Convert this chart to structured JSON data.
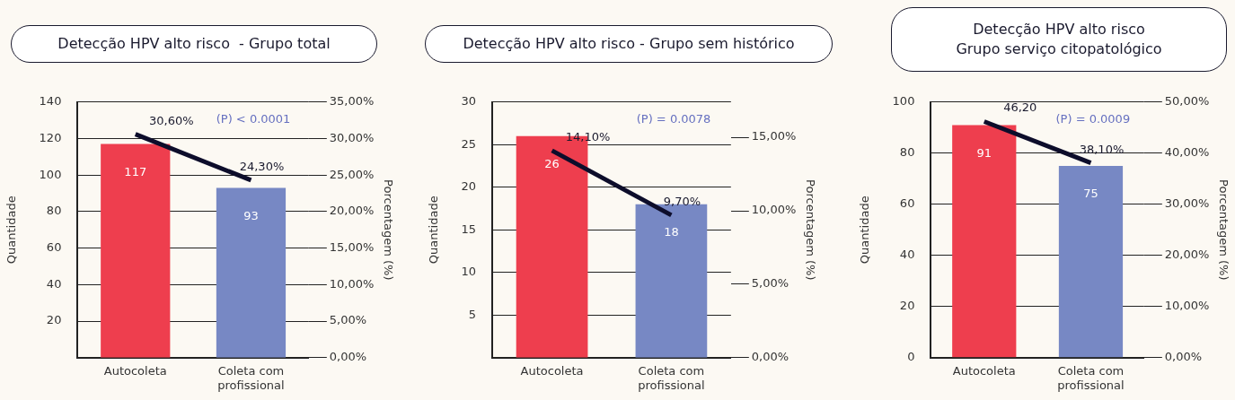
{
  "chart_data": [
    {
      "type": "bar",
      "title": "Detecção HPV alto risco  - Grupo total",
      "categories": [
        "Autocoleta",
        "Coleta com profissional"
      ],
      "ylabel": "Quantidade",
      "y2label": "Porcentagem (%)",
      "series": [
        {
          "colors": [
            "#ee3e4e",
            "#7788c4"
          ],
          "values": [
            117,
            93
          ],
          "value_labels": [
            "117",
            "93"
          ]
        },
        {
          "type": "line",
          "axis": "y2",
          "color": "#0d0d2b",
          "values": [
            30.6,
            24.3
          ],
          "value_labels": [
            "30,60%",
            "24,30%"
          ]
        }
      ],
      "ylim": [
        0,
        140
      ],
      "yticks": [
        20,
        40,
        60,
        80,
        100,
        120,
        140
      ],
      "y2lim": [
        0,
        35
      ],
      "y2ticks": [
        {
          "value": 0,
          "label": "0,00%"
        },
        {
          "value": 5,
          "label": "5,00%"
        },
        {
          "value": 10,
          "label": "10,00%"
        },
        {
          "value": 15,
          "label": "15,00%"
        },
        {
          "value": 20,
          "label": "20,00%"
        },
        {
          "value": 25,
          "label": "25,00%"
        },
        {
          "value": 30,
          "label": "30,00%"
        },
        {
          "value": 35,
          "label": "35,00%"
        }
      ],
      "grid": "y",
      "legend": false,
      "marker": "none",
      "annotations": [
        "(P) < 0.0001"
      ]
    },
    {
      "type": "bar",
      "title": "Detecção HPV alto risco - Grupo sem histórico",
      "categories": [
        "Autocoleta",
        "Coleta com profissional"
      ],
      "ylabel": "Quantidade",
      "y2label": "Porcentagem (%)",
      "series": [
        {
          "colors": [
            "#ee3e4e",
            "#7788c4"
          ],
          "values": [
            26,
            18
          ],
          "value_labels": [
            "26",
            "18"
          ]
        },
        {
          "type": "line",
          "axis": "y2",
          "color": "#0d0d2b",
          "values": [
            14.1,
            9.7
          ],
          "value_labels": [
            "14,10%",
            "9,70%"
          ]
        }
      ],
      "ylim": [
        0,
        30
      ],
      "yticks": [
        5,
        10,
        15,
        20,
        25,
        30
      ],
      "y2lim": [
        0,
        17.4
      ],
      "y2ticks": [
        {
          "value": 0,
          "label": "0,00%"
        },
        {
          "value": 5,
          "label": "5,00%"
        },
        {
          "value": 10,
          "label": "10,00%"
        },
        {
          "value": 15,
          "label": "15,00%"
        }
      ],
      "grid": "y",
      "legend": false,
      "marker": "none",
      "annotations": [
        "(P) = 0.0078"
      ]
    },
    {
      "type": "bar",
      "title": "Detecção HPV alto risco\nGrupo serviço citopatológico",
      "categories": [
        "Autocoleta",
        "Coleta com profissional"
      ],
      "ylabel": "Quantidade",
      "y2label": "Porcentagem (%)",
      "series": [
        {
          "colors": [
            "#ee3e4e",
            "#7788c4"
          ],
          "values": [
            91,
            75
          ],
          "value_labels": [
            "91",
            "75"
          ]
        },
        {
          "type": "line",
          "axis": "y2",
          "color": "#0d0d2b",
          "values": [
            46.2,
            38.1
          ],
          "value_labels": [
            "46,20",
            "38,10%"
          ]
        }
      ],
      "ylim": [
        0,
        100
      ],
      "yticks": [
        0,
        20,
        40,
        60,
        80,
        100
      ],
      "y2lim": [
        0,
        50
      ],
      "y2ticks": [
        {
          "value": 0,
          "label": "0,00%"
        },
        {
          "value": 10,
          "label": "10,00%"
        },
        {
          "value": 20,
          "label": "20,00%"
        },
        {
          "value": 30,
          "label": "30,00%"
        },
        {
          "value": 40,
          "label": "40,00%"
        },
        {
          "value": 50,
          "label": "50,00%"
        }
      ],
      "grid": "y",
      "legend": false,
      "marker": "none",
      "annotations": [
        "(P) = 0.0009"
      ]
    }
  ]
}
